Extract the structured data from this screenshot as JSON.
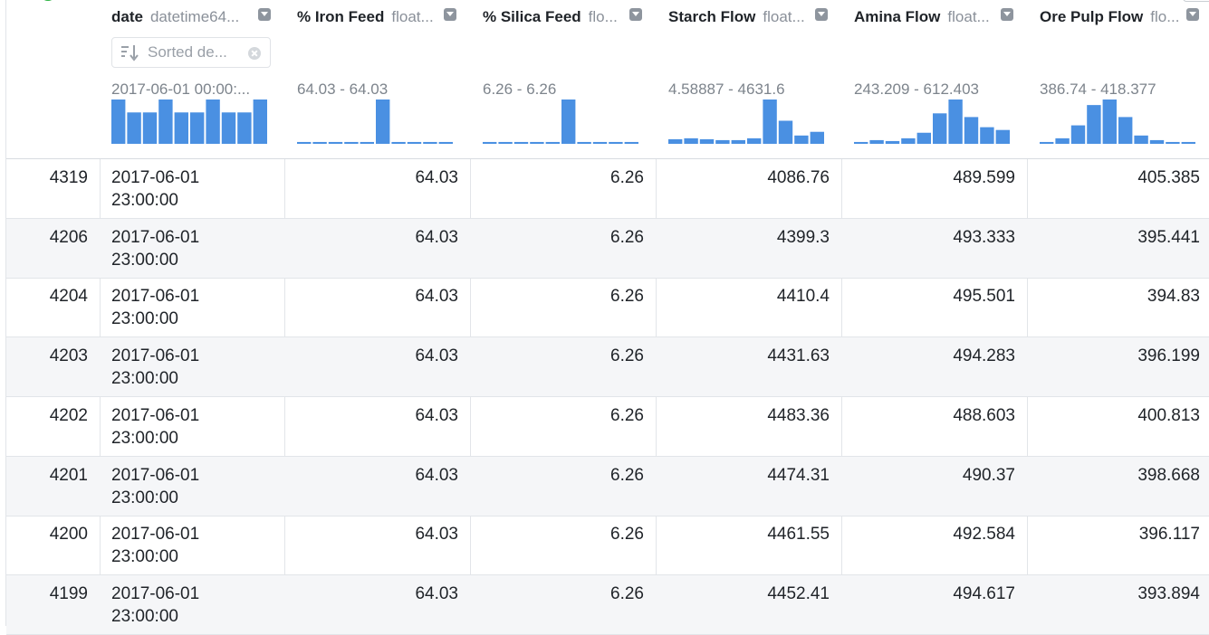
{
  "columns": [
    {
      "name": "date",
      "type": "datetime64...",
      "range": "2017-06-01 00:00:...",
      "hist": [
        48,
        34,
        34,
        48,
        34,
        34,
        48,
        34,
        34,
        48
      ]
    },
    {
      "name": "% Iron Feed",
      "type": "float...",
      "range": "64.03 - 64.03",
      "hist": [
        2,
        2,
        2,
        2,
        2,
        48,
        2,
        2,
        2,
        2
      ]
    },
    {
      "name": "% Silica Feed",
      "type": "flo...",
      "range": "6.26 - 6.26",
      "hist": [
        2,
        2,
        2,
        2,
        2,
        48,
        2,
        2,
        2,
        2
      ]
    },
    {
      "name": "Starch Flow",
      "type": "float...",
      "range": "4.58887 - 4631.6",
      "hist": [
        5,
        6,
        5,
        4,
        4,
        6,
        48,
        25,
        9,
        13
      ]
    },
    {
      "name": "Amina Flow",
      "type": "float...",
      "range": "243.209 - 612.403",
      "hist": [
        2,
        4,
        3,
        6,
        12,
        33,
        48,
        29,
        18,
        15
      ]
    },
    {
      "name": "Ore Pulp Flow",
      "type": "flo...",
      "range": "386.74 - 418.377",
      "hist": [
        2,
        6,
        20,
        42,
        48,
        29,
        9,
        4,
        2,
        2
      ]
    }
  ],
  "sort": {
    "label": "Sorted de..."
  },
  "rows": [
    {
      "index": "4319",
      "date1": "2017-06-01",
      "date2": "23:00:00",
      "iron": "64.03",
      "silica": "6.26",
      "starch": "4086.76",
      "amina": "489.599",
      "ore": "405.385"
    },
    {
      "index": "4206",
      "date1": "2017-06-01",
      "date2": "23:00:00",
      "iron": "64.03",
      "silica": "6.26",
      "starch": "4399.3",
      "amina": "493.333",
      "ore": "395.441"
    },
    {
      "index": "4204",
      "date1": "2017-06-01",
      "date2": "23:00:00",
      "iron": "64.03",
      "silica": "6.26",
      "starch": "4410.4",
      "amina": "495.501",
      "ore": "394.83"
    },
    {
      "index": "4203",
      "date1": "2017-06-01",
      "date2": "23:00:00",
      "iron": "64.03",
      "silica": "6.26",
      "starch": "4431.63",
      "amina": "494.283",
      "ore": "396.199"
    },
    {
      "index": "4202",
      "date1": "2017-06-01",
      "date2": "23:00:00",
      "iron": "64.03",
      "silica": "6.26",
      "starch": "4483.36",
      "amina": "488.603",
      "ore": "400.813"
    },
    {
      "index": "4201",
      "date1": "2017-06-01",
      "date2": "23:00:00",
      "iron": "64.03",
      "silica": "6.26",
      "starch": "4474.31",
      "amina": "490.37",
      "ore": "398.668"
    },
    {
      "index": "4200",
      "date1": "2017-06-01",
      "date2": "23:00:00",
      "iron": "64.03",
      "silica": "6.26",
      "starch": "4461.55",
      "amina": "492.584",
      "ore": "396.117"
    },
    {
      "index": "4199",
      "date1": "2017-06-01",
      "date2": "23:00:00",
      "iron": "64.03",
      "silica": "6.26",
      "starch": "4452.41",
      "amina": "494.617",
      "ore": "393.894"
    }
  ],
  "colors": {
    "bar": "#4a90e2",
    "status": "#2fb344"
  }
}
